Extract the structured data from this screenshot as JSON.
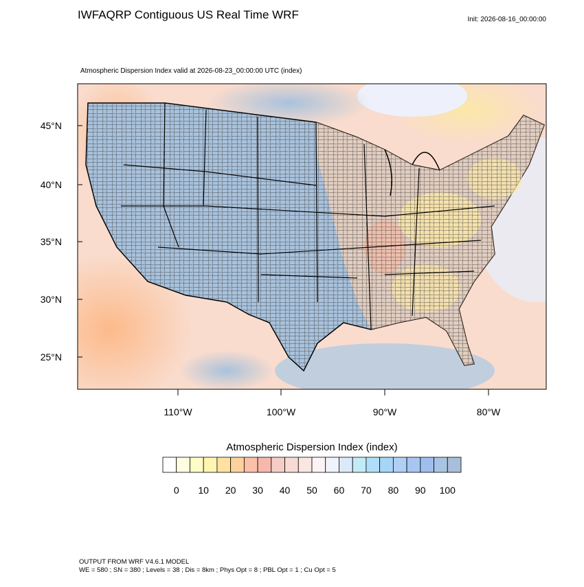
{
  "header": {
    "title": "IWFAQRP Contiguous US Real Time WRF",
    "init": "Init: 2026-08-16_00:00:00",
    "subtitle": "Atmospheric Dispersion Index valid at 2026-08-23_00:00:00 UTC   (index)"
  },
  "map": {
    "lat_labels": [
      "45°N",
      "40°N",
      "35°N",
      "30°N",
      "25°N"
    ],
    "lon_labels": [
      "110°W",
      "100°W",
      "90°W",
      "80°W"
    ]
  },
  "colorbar": {
    "title": "Atmospheric Dispersion Index  (index)",
    "levels": [
      0,
      5,
      10,
      15,
      20,
      25,
      30,
      35,
      40,
      45,
      50,
      55,
      60,
      65,
      70,
      75,
      80,
      85,
      90,
      95,
      100
    ],
    "ticks": [
      0,
      10,
      20,
      30,
      40,
      50,
      60,
      70,
      80,
      90,
      100
    ],
    "colors": [
      "#ffffff",
      "#fffde2",
      "#fefdc6",
      "#fff6b2",
      "#ffe2a0",
      "#fdd29c",
      "#fcc0a8",
      "#f6b8ac",
      "#f4cec6",
      "#f7dad5",
      "#fae6e3",
      "#fdf3f3",
      "#eef3fc",
      "#dbeafa",
      "#c2ebf8",
      "#b0def8",
      "#a6d6f7",
      "#b1cff4",
      "#a7c6f2",
      "#9fbeee",
      "#a9c4e2",
      "#a8bedb"
    ]
  },
  "footer": {
    "line1": "OUTPUT FROM WRF V4.6.1 MODEL",
    "line2": "WE = 580 ; SN = 380 ; Levels = 38 ; Dis = 8km ; Phys Opt = 8 ; PBL Opt = 1 ; Cu Opt = 5"
  }
}
